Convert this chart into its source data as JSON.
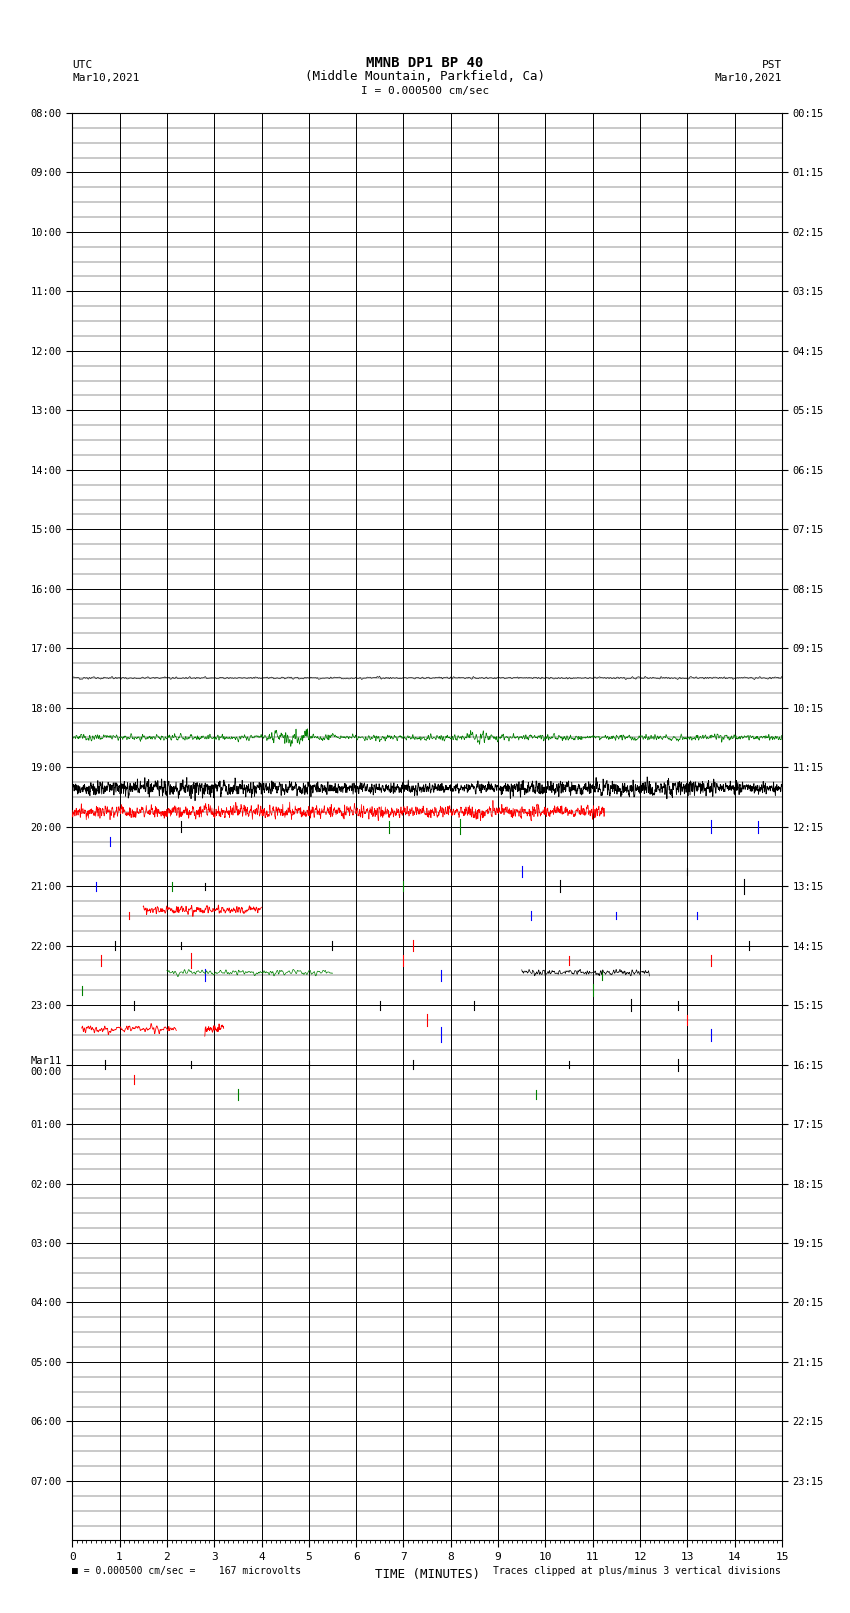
{
  "title_line1": "MMNB DP1 BP 40",
  "title_line2": "(Middle Mountain, Parkfield, Ca)",
  "scale_text": "I = 0.000500 cm/sec",
  "left_top_label": "UTC",
  "left_date": "Mar10,2021",
  "right_top_label": "PST",
  "right_date": "Mar10,2021",
  "xlabel": "TIME (MINUTES)",
  "bottom_left_text": "= 0.000500 cm/sec =    167 microvolts",
  "bottom_right_text": "Traces clipped at plus/minus 3 vertical divisions",
  "bg_color": "#ffffff",
  "major_grid_color": "#000000",
  "minor_grid_color": "#555555",
  "n_rows": 24,
  "n_cols": 15,
  "sub_rows": 4,
  "utc_labels": [
    "08:00",
    "09:00",
    "10:00",
    "11:00",
    "12:00",
    "13:00",
    "14:00",
    "15:00",
    "16:00",
    "17:00",
    "18:00",
    "19:00",
    "20:00",
    "21:00",
    "22:00",
    "23:00",
    "Mar11\n00:00",
    "01:00",
    "02:00",
    "03:00",
    "04:00",
    "05:00",
    "06:00",
    "07:00"
  ],
  "pst_labels": [
    "00:15",
    "01:15",
    "02:15",
    "03:15",
    "04:15",
    "05:15",
    "06:15",
    "07:15",
    "08:15",
    "09:15",
    "10:15",
    "11:15",
    "12:15",
    "13:15",
    "14:15",
    "15:15",
    "16:15",
    "17:15",
    "18:15",
    "19:15",
    "20:15",
    "21:15",
    "22:15",
    "23:15"
  ]
}
